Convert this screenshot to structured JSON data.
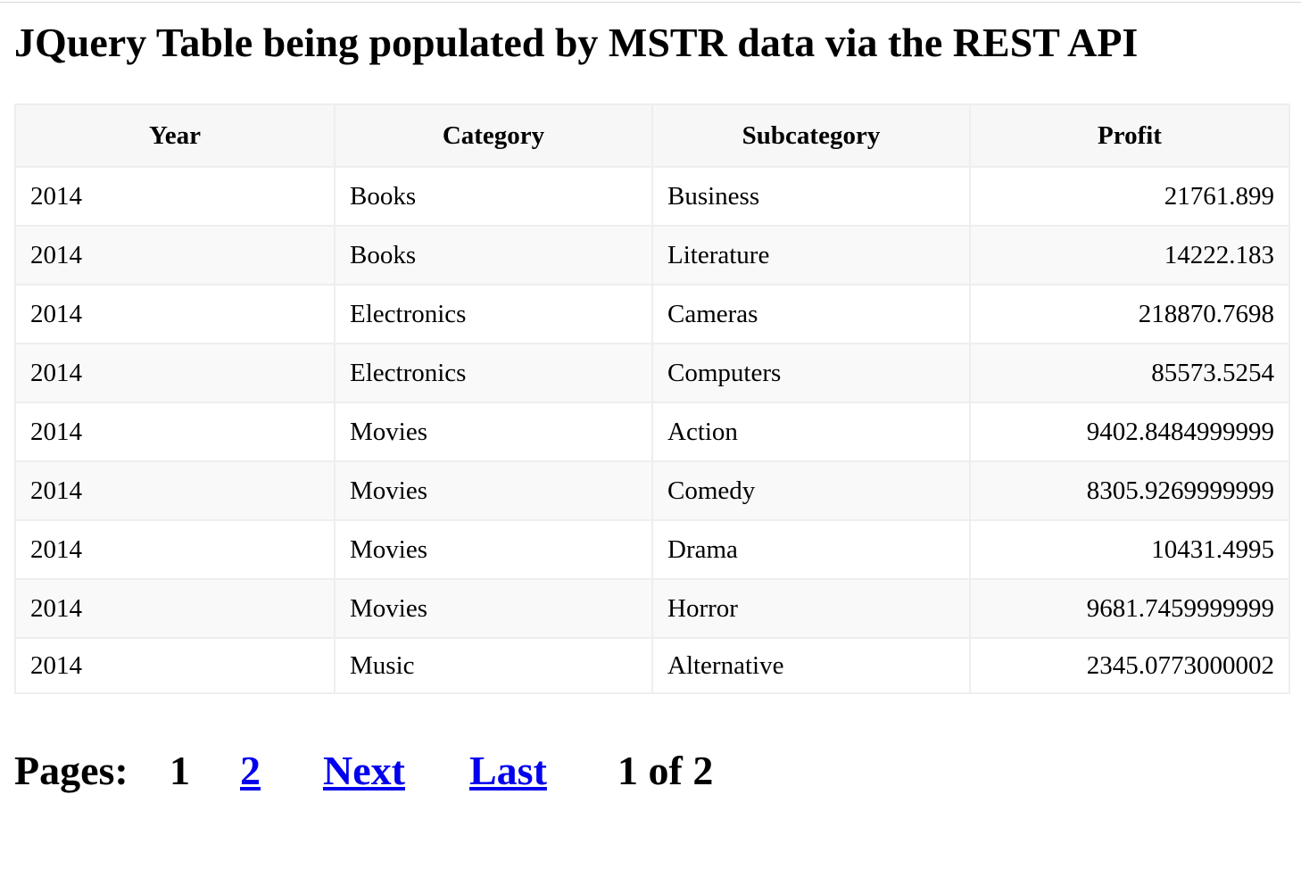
{
  "page": {
    "title": "JQuery Table being populated by MSTR data via the REST API"
  },
  "table": {
    "columns": [
      "Year",
      "Category",
      "Subcategory",
      "Profit"
    ],
    "rows": [
      [
        "2014",
        "Books",
        "Business",
        "21761.899"
      ],
      [
        "2014",
        "Books",
        "Literature",
        "14222.183"
      ],
      [
        "2014",
        "Electronics",
        "Cameras",
        "218870.7698"
      ],
      [
        "2014",
        "Electronics",
        "Computers",
        "85573.5254"
      ],
      [
        "2014",
        "Movies",
        "Action",
        "9402.8484999999"
      ],
      [
        "2014",
        "Movies",
        "Comedy",
        "8305.9269999999"
      ],
      [
        "2014",
        "Movies",
        "Drama",
        "10431.4995"
      ],
      [
        "2014",
        "Movies",
        "Horror",
        "9681.7459999999"
      ],
      [
        "2014",
        "Music",
        "Alternative",
        "2345.0773000002"
      ]
    ]
  },
  "pager": {
    "label": "Pages:",
    "current_page": "1",
    "page_2_link": "2",
    "next_link": "Next",
    "last_link": "Last",
    "status": "1 of 2"
  },
  "colors": {
    "link": "#0000ee",
    "header_bg": "#f7f7f7",
    "row_alt_bg": "#f9f9f9"
  }
}
